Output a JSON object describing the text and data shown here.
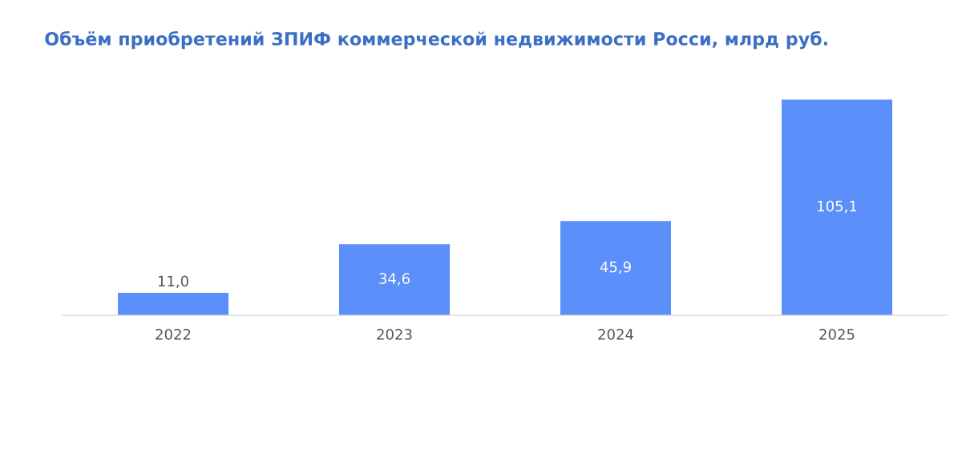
{
  "chart_data": {
    "type": "bar",
    "title": "Объём приобретений ЗПИФ коммерческой недвижимости Росси, млрд руб.",
    "categories": [
      "2022",
      "2023",
      "2024",
      "2025"
    ],
    "values": [
      11.0,
      34.6,
      45.9,
      105.1
    ],
    "value_labels": [
      "11,0",
      "34,6",
      "45,9",
      "105,1"
    ],
    "color": "#5b8ff9"
  }
}
